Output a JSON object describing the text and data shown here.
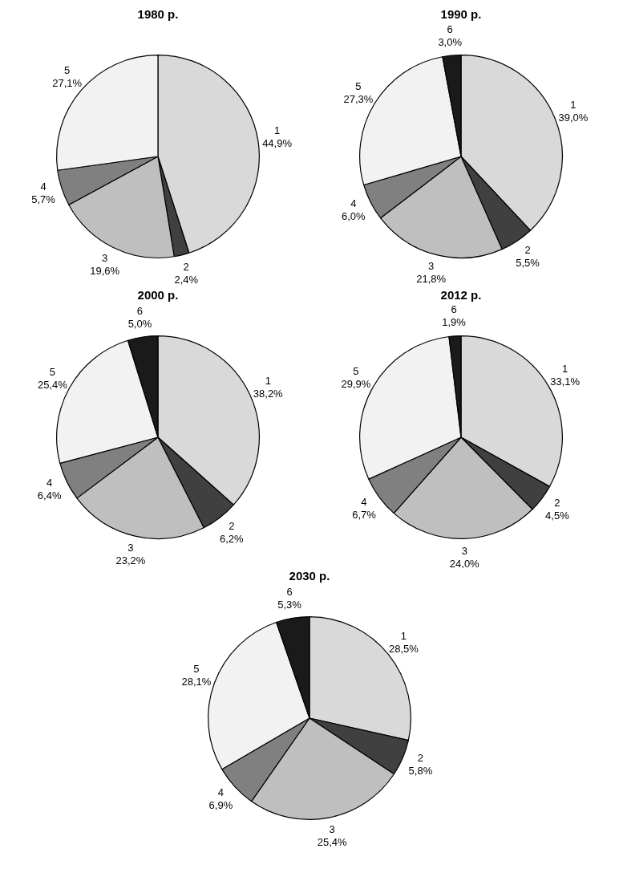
{
  "chart_data": [
    {
      "type": "pie",
      "title": "1980 р.",
      "categories": [
        "1",
        "2",
        "3",
        "4",
        "5"
      ],
      "values": [
        44.9,
        2.4,
        19.6,
        5.7,
        27.1
      ],
      "value_labels": [
        "44,9%",
        "2,4%",
        "19,6%",
        "5,7%",
        "27,1%"
      ],
      "colors": [
        "#d9d9d9",
        "#404040",
        "#bfbfbf",
        "#808080",
        "#f2f2f2"
      ]
    },
    {
      "type": "pie",
      "title": "1990 р.",
      "categories": [
        "1",
        "2",
        "3",
        "4",
        "5",
        "6"
      ],
      "values": [
        39.0,
        5.5,
        21.8,
        6.0,
        27.3,
        3.0
      ],
      "value_labels": [
        "39,0%",
        "5,5%",
        "21,8%",
        "6,0%",
        "27,3%",
        "3,0%"
      ],
      "colors": [
        "#d9d9d9",
        "#404040",
        "#bfbfbf",
        "#808080",
        "#f2f2f2",
        "#1a1a1a"
      ]
    },
    {
      "type": "pie",
      "title": "2000 р.",
      "categories": [
        "1",
        "2",
        "3",
        "4",
        "5",
        "6"
      ],
      "values": [
        38.2,
        6.2,
        23.2,
        6.4,
        25.4,
        5.0
      ],
      "value_labels": [
        "38,2%",
        "6,2%",
        "23,2%",
        "6,4%",
        "25,4%",
        "5,0%"
      ],
      "colors": [
        "#d9d9d9",
        "#404040",
        "#bfbfbf",
        "#808080",
        "#f2f2f2",
        "#1a1a1a"
      ]
    },
    {
      "type": "pie",
      "title": "2012 р.",
      "categories": [
        "1",
        "2",
        "3",
        "4",
        "5",
        "6"
      ],
      "values": [
        33.1,
        4.5,
        24.0,
        6.7,
        29.9,
        1.9
      ],
      "value_labels": [
        "33,1%",
        "4,5%",
        "24,0%",
        "6,7%",
        "29,9%",
        "1,9%"
      ],
      "colors": [
        "#d9d9d9",
        "#404040",
        "#bfbfbf",
        "#808080",
        "#f2f2f2",
        "#1a1a1a"
      ]
    },
    {
      "type": "pie",
      "title": "2030 р.",
      "categories": [
        "1",
        "2",
        "3",
        "4",
        "5",
        "6"
      ],
      "values": [
        28.5,
        5.8,
        25.4,
        6.9,
        28.1,
        5.3
      ],
      "value_labels": [
        "28,5%",
        "5,8%",
        "25,4%",
        "6,9%",
        "28,1%",
        "5,3%"
      ],
      "colors": [
        "#d9d9d9",
        "#404040",
        "#bfbfbf",
        "#808080",
        "#f2f2f2",
        "#1a1a1a"
      ]
    }
  ]
}
